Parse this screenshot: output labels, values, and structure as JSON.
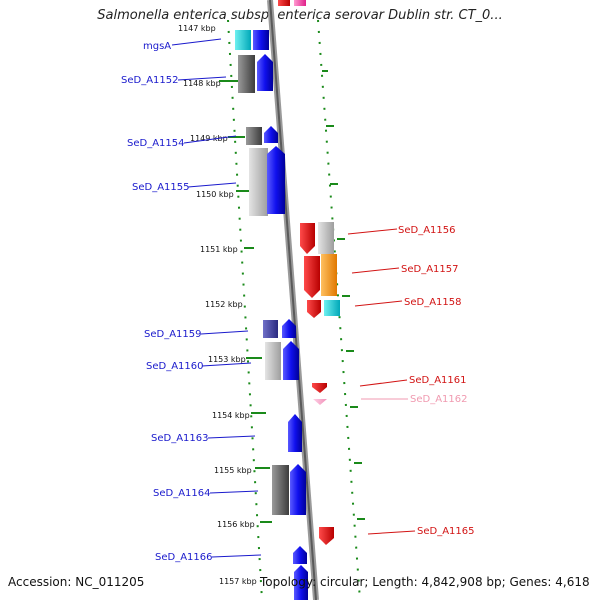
{
  "header": {
    "title": "Salmonella enterica subsp. enterica serovar Dublin str. CT_0..."
  },
  "footer": {
    "accession": "Accession: NC_011205",
    "topology": "Topology: circular; Length: 4,842,908 bp; Genes: 4,618"
  },
  "colors": {
    "backbone": "#7a7a7a",
    "label_left": "#1a1acc",
    "label_right": "#d21414",
    "label_faded": "#f09ab0",
    "dotted_track": "#1a8a1a"
  },
  "ticks": [
    "1147 kbp",
    "1148 kbp",
    "1149 kbp",
    "1150 kbp",
    "1151 kbp",
    "1152 kbp",
    "1153 kbp",
    "1154 kbp",
    "1155 kbp",
    "1156 kbp",
    "1157 kbp"
  ],
  "left_labels": [
    "mgsA",
    "SeD_A1152",
    "SeD_A1154",
    "SeD_A1155",
    "SeD_A1159",
    "SeD_A1160",
    "SeD_A1163",
    "SeD_A1164",
    "SeD_A1166"
  ],
  "right_labels": [
    "SeD_A1156",
    "SeD_A1157",
    "SeD_A1158",
    "SeD_A1161",
    "SeD_A1162",
    "SeD_A1165"
  ]
}
